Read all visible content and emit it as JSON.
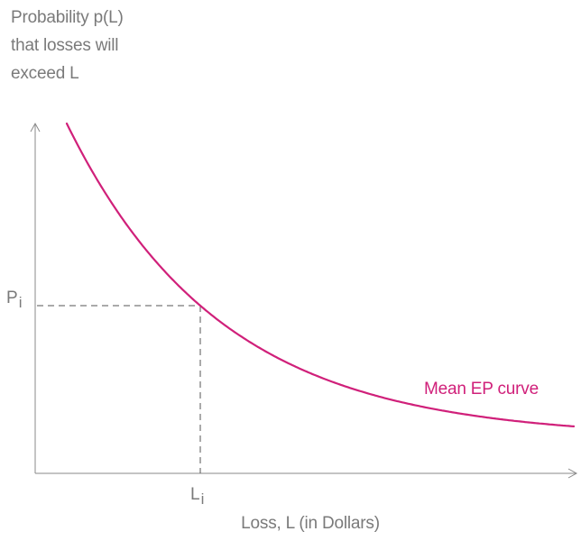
{
  "chart_data": {
    "type": "line",
    "ylabel_lines": [
      "Probability p(L)",
      "that losses will",
      "exceed L"
    ],
    "xlabel": "Loss, L (in Dollars)",
    "marked_point": {
      "x_label": "L",
      "x_sub": "i",
      "y_label": "P",
      "y_sub": "i"
    },
    "series": [
      {
        "name": "Mean EP curve",
        "color": "#d0207a",
        "shape": "exponential-decay"
      }
    ],
    "axis_color": "#8a8a8a",
    "grid": false
  }
}
